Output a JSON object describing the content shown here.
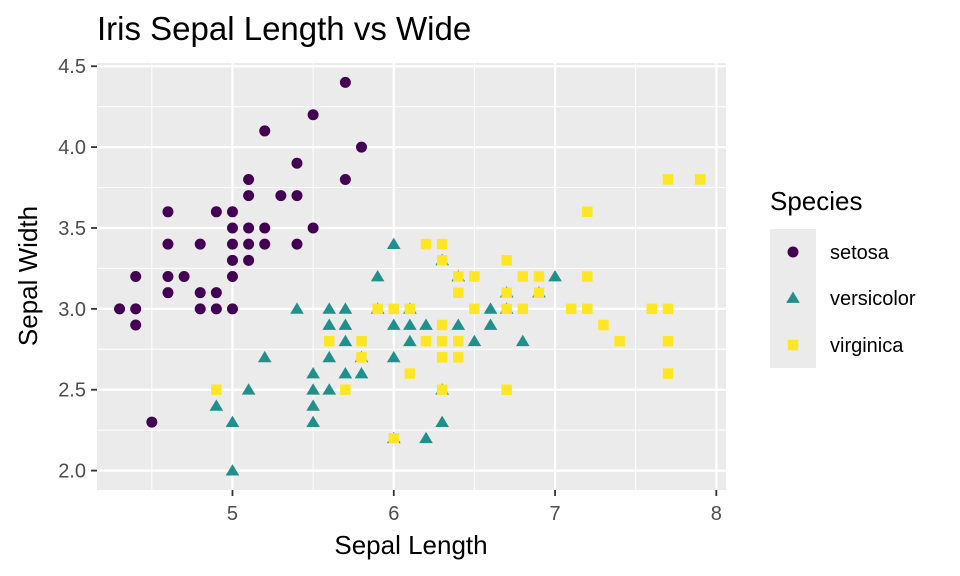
{
  "chart_data": {
    "type": "scatter",
    "title": "Iris Sepal Length vs Wide",
    "xlabel": "Sepal Length",
    "ylabel": "Sepal Width",
    "xlim": [
      4.16,
      8.06
    ],
    "ylim": [
      1.88,
      4.52
    ],
    "x_ticks": [
      5,
      6,
      7,
      8
    ],
    "y_ticks": [
      2.0,
      2.5,
      3.0,
      3.5,
      4.0,
      4.5
    ],
    "x_tick_labels": [
      "5",
      "6",
      "7",
      "8"
    ],
    "y_tick_labels": [
      "2.0",
      "2.5",
      "3.0",
      "3.5",
      "4.0",
      "4.5"
    ],
    "grid": true,
    "legend": {
      "title": "Species",
      "position": "right"
    },
    "series": [
      {
        "name": "setosa",
        "marker": "circle",
        "color": "#440154",
        "points": [
          [
            4.3,
            3.0
          ],
          [
            4.4,
            2.9
          ],
          [
            4.4,
            3.0
          ],
          [
            4.4,
            3.2
          ],
          [
            4.5,
            2.3
          ],
          [
            4.6,
            3.1
          ],
          [
            4.6,
            3.2
          ],
          [
            4.6,
            3.4
          ],
          [
            4.6,
            3.6
          ],
          [
            4.7,
            3.2
          ],
          [
            4.8,
            3.0
          ],
          [
            4.8,
            3.1
          ],
          [
            4.8,
            3.4
          ],
          [
            4.9,
            3.0
          ],
          [
            4.9,
            3.1
          ],
          [
            4.9,
            3.6
          ],
          [
            5.0,
            3.0
          ],
          [
            5.0,
            3.2
          ],
          [
            5.0,
            3.3
          ],
          [
            5.0,
            3.4
          ],
          [
            5.0,
            3.5
          ],
          [
            5.0,
            3.6
          ],
          [
            5.1,
            3.3
          ],
          [
            5.1,
            3.4
          ],
          [
            5.1,
            3.5
          ],
          [
            5.1,
            3.7
          ],
          [
            5.1,
            3.8
          ],
          [
            5.2,
            3.4
          ],
          [
            5.2,
            3.5
          ],
          [
            5.2,
            4.1
          ],
          [
            5.3,
            3.7
          ],
          [
            5.4,
            3.4
          ],
          [
            5.4,
            3.7
          ],
          [
            5.4,
            3.9
          ],
          [
            5.5,
            3.5
          ],
          [
            5.5,
            4.2
          ],
          [
            5.7,
            3.8
          ],
          [
            5.7,
            4.4
          ],
          [
            5.8,
            4.0
          ]
        ]
      },
      {
        "name": "versicolor",
        "marker": "triangle",
        "color": "#21908C",
        "points": [
          [
            4.9,
            2.4
          ],
          [
            5.0,
            2.0
          ],
          [
            5.0,
            2.3
          ],
          [
            5.1,
            2.5
          ],
          [
            5.2,
            2.7
          ],
          [
            5.4,
            3.0
          ],
          [
            5.5,
            2.3
          ],
          [
            5.5,
            2.4
          ],
          [
            5.5,
            2.5
          ],
          [
            5.5,
            2.6
          ],
          [
            5.6,
            2.5
          ],
          [
            5.6,
            2.7
          ],
          [
            5.6,
            2.9
          ],
          [
            5.6,
            3.0
          ],
          [
            5.7,
            2.6
          ],
          [
            5.7,
            2.8
          ],
          [
            5.7,
            2.9
          ],
          [
            5.7,
            3.0
          ],
          [
            5.8,
            2.6
          ],
          [
            5.8,
            2.7
          ],
          [
            5.9,
            3.0
          ],
          [
            5.9,
            3.2
          ],
          [
            6.0,
            2.2
          ],
          [
            6.0,
            2.7
          ],
          [
            6.0,
            2.9
          ],
          [
            6.0,
            3.4
          ],
          [
            6.1,
            2.8
          ],
          [
            6.1,
            2.9
          ],
          [
            6.1,
            3.0
          ],
          [
            6.2,
            2.2
          ],
          [
            6.2,
            2.9
          ],
          [
            6.3,
            2.3
          ],
          [
            6.3,
            2.5
          ],
          [
            6.3,
            3.3
          ],
          [
            6.4,
            2.9
          ],
          [
            6.4,
            3.2
          ],
          [
            6.5,
            2.8
          ],
          [
            6.6,
            2.9
          ],
          [
            6.6,
            3.0
          ],
          [
            6.7,
            3.0
          ],
          [
            6.7,
            3.1
          ],
          [
            6.8,
            2.8
          ],
          [
            6.9,
            3.1
          ],
          [
            7.0,
            3.2
          ]
        ]
      },
      {
        "name": "virginica",
        "marker": "square",
        "color": "#FDE725",
        "points": [
          [
            4.9,
            2.5
          ],
          [
            5.6,
            2.8
          ],
          [
            5.7,
            2.5
          ],
          [
            5.8,
            2.7
          ],
          [
            5.8,
            2.8
          ],
          [
            5.9,
            3.0
          ],
          [
            6.0,
            2.2
          ],
          [
            6.0,
            3.0
          ],
          [
            6.1,
            2.6
          ],
          [
            6.1,
            3.0
          ],
          [
            6.2,
            2.8
          ],
          [
            6.2,
            3.4
          ],
          [
            6.3,
            2.5
          ],
          [
            6.3,
            2.7
          ],
          [
            6.3,
            2.8
          ],
          [
            6.3,
            2.9
          ],
          [
            6.3,
            3.3
          ],
          [
            6.3,
            3.4
          ],
          [
            6.4,
            2.7
          ],
          [
            6.4,
            2.8
          ],
          [
            6.4,
            3.1
          ],
          [
            6.4,
            3.2
          ],
          [
            6.5,
            3.0
          ],
          [
            6.5,
            3.2
          ],
          [
            6.7,
            2.5
          ],
          [
            6.7,
            3.0
          ],
          [
            6.7,
            3.1
          ],
          [
            6.7,
            3.3
          ],
          [
            6.8,
            3.0
          ],
          [
            6.8,
            3.2
          ],
          [
            6.9,
            3.1
          ],
          [
            6.9,
            3.2
          ],
          [
            7.1,
            3.0
          ],
          [
            7.2,
            3.0
          ],
          [
            7.2,
            3.2
          ],
          [
            7.2,
            3.6
          ],
          [
            7.3,
            2.9
          ],
          [
            7.4,
            2.8
          ],
          [
            7.6,
            3.0
          ],
          [
            7.7,
            2.6
          ],
          [
            7.7,
            2.8
          ],
          [
            7.7,
            3.0
          ],
          [
            7.7,
            3.8
          ],
          [
            7.9,
            3.8
          ]
        ]
      }
    ]
  }
}
